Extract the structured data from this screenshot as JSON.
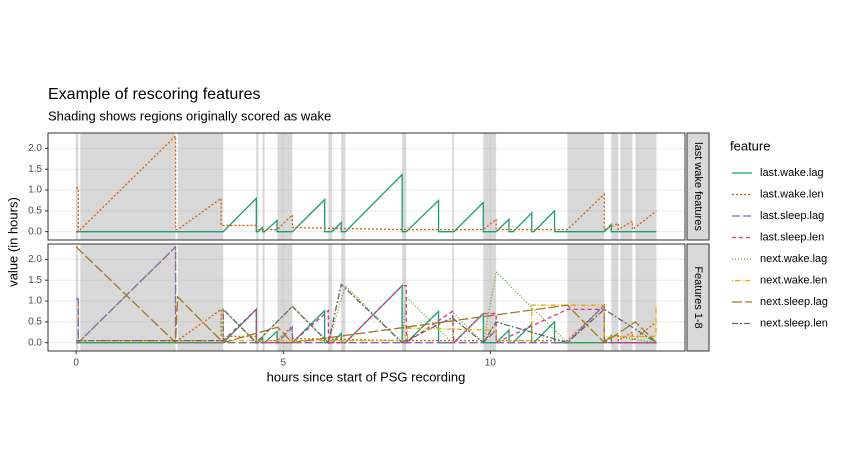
{
  "chart_data": {
    "type": "line",
    "title": "Example of rescoring features",
    "subtitle": "Shading shows regions originally scored as wake",
    "x_label": "hours since start of PSG recording",
    "y_label": "value (in hours)",
    "legend_title": "feature",
    "grid": true,
    "xlim": [
      -0.68,
      14.7
    ],
    "xticks": [
      0,
      5,
      10
    ],
    "ylim": [
      -0.2,
      2.37
    ],
    "yticks": [
      {
        "value": 0,
        "label": "0.0"
      },
      0.5,
      {
        "value": 1,
        "label": "1.0"
      },
      1.5,
      {
        "value": 2,
        "label": "2.0"
      }
    ],
    "wake_regions": [
      [
        0,
        0.05
      ],
      [
        0.1,
        2.4
      ],
      [
        2.45,
        3.55
      ],
      [
        4.35,
        4.4
      ],
      [
        4.5,
        4.55
      ],
      [
        4.86,
        5.22
      ],
      [
        6.09,
        6.18
      ],
      [
        6.4,
        6.5
      ],
      [
        7.87,
        7.97
      ],
      [
        9.08,
        9.12
      ],
      [
        9.83,
        10.14
      ],
      [
        11.86,
        12.75
      ],
      [
        12.92,
        13.09
      ],
      [
        13.14,
        13.43
      ],
      [
        13.5,
        14.01
      ]
    ],
    "facets": [
      {
        "label": "last wake features",
        "series": [
          {
            "name": "last.wake.lag",
            "color": "#1b9e77",
            "dash": "none",
            "x": [
              0,
              3.55,
              4.35,
              4.35,
              4.4,
              4.5,
              4.5,
              4.55,
              4.85,
              4.85,
              5.22,
              6.0,
              6.0,
              6.18,
              6.4,
              6.4,
              6.5,
              7.87,
              7.87,
              7.97,
              8.75,
              8.75,
              9.12,
              9.83,
              9.83,
              10.14,
              10.45,
              10.45,
              10.55,
              11.0,
              11.0,
              11.05,
              11.55,
              11.55,
              11.86,
              12.75,
              12.92,
              12.92,
              14.01
            ],
            "values": [
              0,
              0,
              0.8,
              0,
              0,
              0.1,
              0,
              0,
              0.27,
              0,
              0,
              0.77,
              0,
              0,
              0.22,
              0,
              0,
              1.37,
              0,
              0,
              0.75,
              0,
              0,
              0.7,
              0,
              0,
              0.3,
              0,
              0,
              0.45,
              0,
              0,
              0.5,
              0,
              0,
              0,
              0.17,
              0,
              0
            ]
          },
          {
            "name": "last.wake.len",
            "color": "#d95f02",
            "dash": "2,2",
            "x": [
              0,
              0.05,
              0.05,
              2.4,
              2.4,
              2.45,
              3.5,
              3.5,
              4.35,
              4.35,
              4.85,
              5.22,
              5.22,
              7.87,
              9.83,
              10.14,
              10.14,
              11.86,
              12.75,
              12.75,
              13.09,
              13.09,
              13.43,
              13.43,
              14.01
            ],
            "values": [
              1.05,
              1.05,
              0,
              2.3,
              0.05,
              0.05,
              0.8,
              0.15,
              0.15,
              0.05,
              0.05,
              0.4,
              0.1,
              0.05,
              0.05,
              0.3,
              0.05,
              0.05,
              0.9,
              0.05,
              0.2,
              0.05,
              0.25,
              0.05,
              0.5
            ]
          }
        ]
      },
      {
        "label": "Features 1-8",
        "series": [
          {
            "name": "last.wake.lag",
            "color": "#1b9e77",
            "dash": "none",
            "x": [
              0,
              3.55,
              4.35,
              4.35,
              4.4,
              4.5,
              4.5,
              4.55,
              4.85,
              4.85,
              5.22,
              6.0,
              6.0,
              6.18,
              6.4,
              6.4,
              6.5,
              7.87,
              7.87,
              7.97,
              8.75,
              8.75,
              9.12,
              9.83,
              9.83,
              10.14,
              10.45,
              10.45,
              10.55,
              11.0,
              11.0,
              11.05,
              11.55,
              11.55,
              11.86,
              12.75,
              12.92,
              12.92,
              14.01
            ],
            "values": [
              0,
              0,
              0.8,
              0,
              0,
              0.1,
              0,
              0,
              0.27,
              0,
              0,
              0.77,
              0,
              0,
              0.22,
              0,
              0,
              1.37,
              0,
              0,
              0.75,
              0,
              0,
              0.7,
              0,
              0,
              0.3,
              0,
              0,
              0.45,
              0,
              0,
              0.5,
              0,
              0,
              0,
              0.17,
              0,
              0
            ]
          },
          {
            "name": "last.wake.len",
            "color": "#d95f02",
            "dash": "2,2",
            "x": [
              0,
              0.05,
              0.05,
              2.4,
              2.4,
              2.45,
              3.5,
              3.5,
              4.35,
              4.35,
              4.85,
              5.22,
              5.22,
              7.87,
              9.83,
              10.14,
              10.14,
              11.86,
              12.75,
              12.75,
              13.09,
              13.09,
              13.43,
              13.43,
              14.01
            ],
            "values": [
              1.05,
              1.05,
              0,
              2.3,
              0.05,
              0.05,
              0.8,
              0.15,
              0.15,
              0.05,
              0.05,
              0.4,
              0.1,
              0.05,
              0.05,
              0.3,
              0.05,
              0.05,
              0.9,
              0.05,
              0.2,
              0.05,
              0.25,
              0.05,
              0.5
            ]
          },
          {
            "name": "last.sleep.lag",
            "color": "#7570b3",
            "dash": "8,3",
            "x": [
              0,
              0.05,
              0.05,
              2.4,
              2.4,
              3.55,
              4.86,
              5.22,
              5.22,
              9.83,
              10.14,
              10.14,
              11.86,
              12.75,
              12.75,
              14.01
            ],
            "values": [
              1.05,
              1.05,
              0,
              2.3,
              0,
              0,
              0,
              0.37,
              0,
              0,
              0.3,
              0,
              0,
              0.9,
              0,
              0
            ]
          },
          {
            "name": "last.sleep.len",
            "color": "#e7298a",
            "dash": "4,3",
            "x": [
              0,
              3.55,
              4.35,
              4.35,
              5.22,
              6.09,
              6.09,
              6.5,
              7.87,
              7.97,
              7.97,
              9.08,
              9.12,
              9.83,
              10.14,
              10.14,
              11.86,
              12.75,
              12.75,
              14.01
            ],
            "values": [
              0.05,
              0.05,
              0.8,
              0,
              0,
              0.77,
              0,
              0,
              1.37,
              1.37,
              0,
              0.75,
              0,
              0.7,
              0.7,
              0,
              0.8,
              0.8,
              0,
              0
            ]
          },
          {
            "name": "next.wake.lag",
            "color": "#66a61e",
            "dash": "1,2",
            "x": [
              0,
              3.55,
              3.55,
              4.35,
              5.22,
              6.09,
              6.5,
              7.87,
              7.97,
              9.08,
              9.12,
              9.83,
              10.14,
              11.86,
              12.75,
              12.92,
              14.01
            ],
            "values": [
              0,
              0,
              0.8,
              0,
              0.87,
              0,
              1.37,
              0,
              1.1,
              0,
              0.7,
              0,
              1.7,
              0,
              0,
              0.17,
              0
            ]
          },
          {
            "name": "next.wake.len",
            "color": "#e6ab02",
            "dash": "1,2,5,2",
            "x": [
              0,
              8.0,
              8.0,
              10.14,
              10.14,
              11.0,
              11.0,
              12.75,
              12.75,
              14.0,
              14.0
            ],
            "values": [
              0.05,
              0.05,
              0.35,
              0.3,
              0.05,
              0.05,
              0.9,
              0.9,
              0.15,
              0.15,
              0.9
            ]
          },
          {
            "name": "next.sleep.lag",
            "color": "#a6761d",
            "dash": "10,3",
            "x": [
              0,
              2.4,
              2.45,
              3.55,
              4.86,
              5.22,
              11.86,
              12.75,
              13.5,
              14.01
            ],
            "values": [
              2.3,
              0,
              1.1,
              0,
              0.37,
              0,
              0.9,
              0,
              0.5,
              0
            ]
          },
          {
            "name": "next.sleep.len",
            "color": "#666666",
            "dash": "6,2,2,2",
            "x": [
              0,
              3.55,
              3.55,
              4.35,
              5.22,
              6.09,
              6.4,
              7.87,
              9.08,
              9.83,
              10.14,
              11.86,
              12.75,
              14.01
            ],
            "values": [
              0.05,
              0.05,
              0.8,
              0,
              0.87,
              0,
              1.4,
              0,
              0.6,
              0,
              0.5,
              0,
              0.8,
              0
            ]
          }
        ]
      }
    ]
  }
}
